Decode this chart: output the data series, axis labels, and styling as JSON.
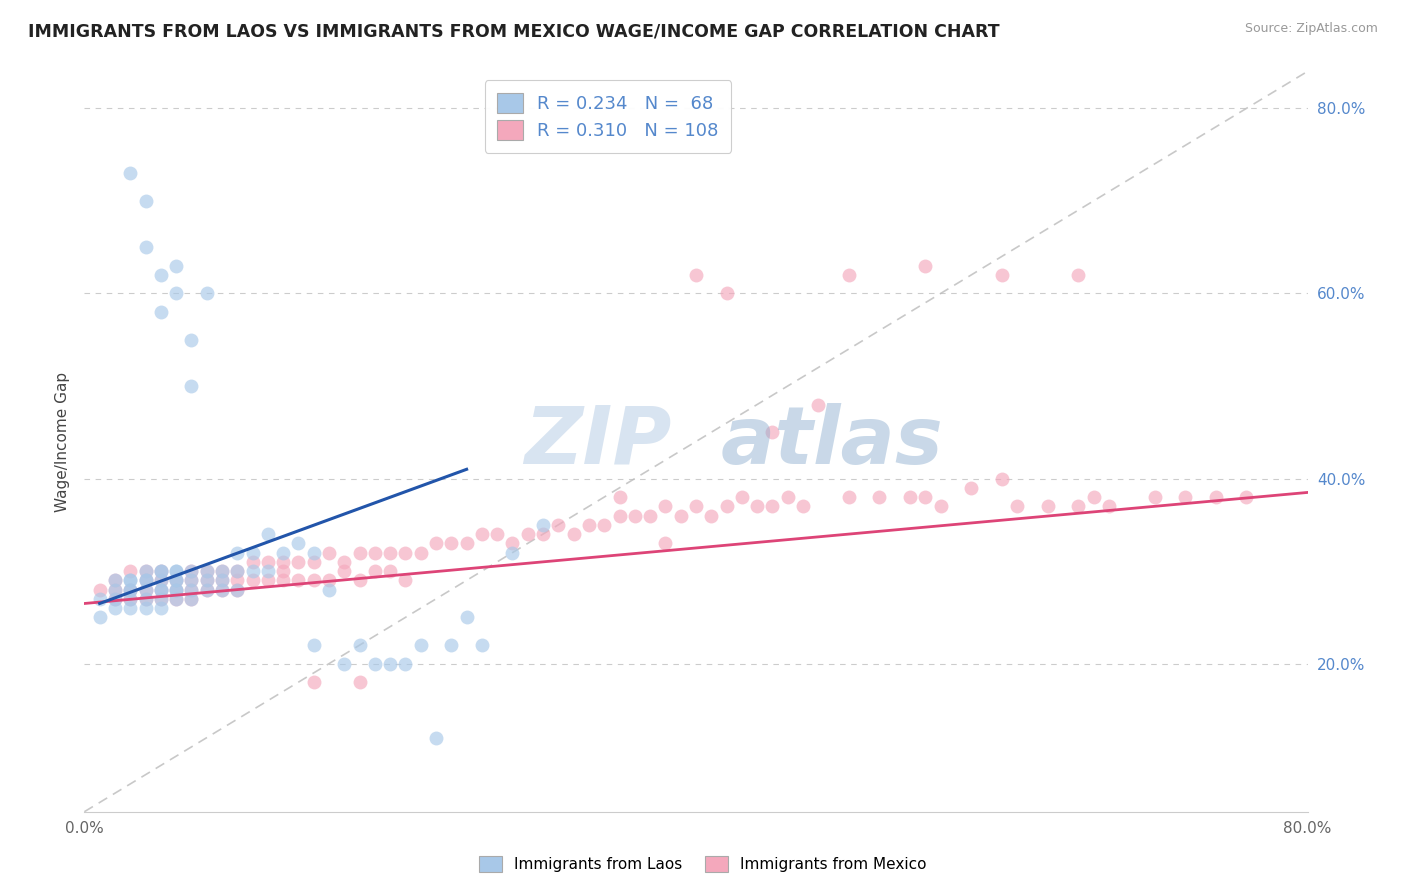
{
  "title": "IMMIGRANTS FROM LAOS VS IMMIGRANTS FROM MEXICO WAGE/INCOME GAP CORRELATION CHART",
  "source": "Source: ZipAtlas.com",
  "ylabel": "Wage/Income Gap",
  "legend_label1": "Immigrants from Laos",
  "legend_label2": "Immigrants from Mexico",
  "r1": 0.234,
  "n1": 68,
  "r2": 0.31,
  "n2": 108,
  "color1": "#a8c8e8",
  "color2": "#f4a8bc",
  "line_color1": "#2255aa",
  "line_color2": "#dd4477",
  "ref_line_color": "#bbbbbb",
  "xlim": [
    0.0,
    0.8
  ],
  "ylim": [
    0.04,
    0.84
  ],
  "xtick_positions": [
    0.0,
    0.8
  ],
  "xtick_labels": [
    "0.0%",
    "80.0%"
  ],
  "yticks_right": [
    0.2,
    0.4,
    0.6,
    0.8
  ],
  "watermark": "ZIPatlas",
  "background_color": "#ffffff",
  "laos_x": [
    0.01,
    0.01,
    0.02,
    0.02,
    0.02,
    0.02,
    0.03,
    0.03,
    0.03,
    0.03,
    0.03,
    0.03,
    0.04,
    0.04,
    0.04,
    0.04,
    0.04,
    0.04,
    0.05,
    0.05,
    0.05,
    0.05,
    0.05,
    0.05,
    0.05,
    0.06,
    0.06,
    0.06,
    0.06,
    0.06,
    0.06,
    0.06,
    0.07,
    0.07,
    0.07,
    0.07,
    0.07,
    0.08,
    0.08,
    0.08,
    0.08,
    0.09,
    0.09,
    0.09,
    0.1,
    0.1,
    0.1,
    0.11,
    0.11,
    0.12,
    0.12,
    0.13,
    0.14,
    0.15,
    0.15,
    0.16,
    0.17,
    0.18,
    0.19,
    0.2,
    0.21,
    0.22,
    0.23,
    0.24,
    0.25,
    0.26,
    0.28,
    0.3
  ],
  "laos_y": [
    0.27,
    0.25,
    0.29,
    0.28,
    0.27,
    0.26,
    0.29,
    0.28,
    0.29,
    0.27,
    0.26,
    0.28,
    0.3,
    0.29,
    0.28,
    0.27,
    0.29,
    0.26,
    0.3,
    0.28,
    0.27,
    0.29,
    0.26,
    0.3,
    0.28,
    0.29,
    0.28,
    0.3,
    0.27,
    0.28,
    0.29,
    0.3,
    0.29,
    0.3,
    0.28,
    0.27,
    0.55,
    0.3,
    0.29,
    0.28,
    0.6,
    0.3,
    0.28,
    0.29,
    0.32,
    0.3,
    0.28,
    0.32,
    0.3,
    0.34,
    0.3,
    0.32,
    0.33,
    0.32,
    0.22,
    0.28,
    0.2,
    0.22,
    0.2,
    0.2,
    0.2,
    0.22,
    0.12,
    0.22,
    0.25,
    0.22,
    0.32,
    0.35
  ],
  "laos_y_outliers_x": [
    0.03,
    0.04,
    0.04,
    0.05,
    0.05,
    0.06,
    0.06,
    0.07
  ],
  "laos_y_outliers_y": [
    0.73,
    0.7,
    0.65,
    0.62,
    0.58,
    0.63,
    0.6,
    0.5
  ],
  "mexico_x": [
    0.01,
    0.02,
    0.02,
    0.02,
    0.03,
    0.03,
    0.03,
    0.04,
    0.04,
    0.04,
    0.04,
    0.05,
    0.05,
    0.05,
    0.05,
    0.06,
    0.06,
    0.06,
    0.07,
    0.07,
    0.07,
    0.07,
    0.08,
    0.08,
    0.08,
    0.09,
    0.09,
    0.09,
    0.1,
    0.1,
    0.1,
    0.11,
    0.11,
    0.12,
    0.12,
    0.13,
    0.13,
    0.13,
    0.14,
    0.14,
    0.15,
    0.15,
    0.16,
    0.16,
    0.17,
    0.17,
    0.18,
    0.18,
    0.19,
    0.19,
    0.2,
    0.2,
    0.21,
    0.21,
    0.22,
    0.23,
    0.24,
    0.25,
    0.26,
    0.27,
    0.28,
    0.29,
    0.3,
    0.31,
    0.32,
    0.33,
    0.34,
    0.35,
    0.36,
    0.37,
    0.38,
    0.39,
    0.4,
    0.41,
    0.42,
    0.43,
    0.44,
    0.45,
    0.46,
    0.47,
    0.5,
    0.52,
    0.54,
    0.55,
    0.56,
    0.58,
    0.6,
    0.61,
    0.63,
    0.65,
    0.66,
    0.67,
    0.7,
    0.72,
    0.74,
    0.76,
    0.4,
    0.42,
    0.45,
    0.48,
    0.35,
    0.38,
    0.5,
    0.55,
    0.6,
    0.65,
    0.15,
    0.18
  ],
  "mexico_y": [
    0.28,
    0.29,
    0.28,
    0.27,
    0.3,
    0.28,
    0.27,
    0.3,
    0.29,
    0.28,
    0.27,
    0.29,
    0.28,
    0.27,
    0.3,
    0.29,
    0.28,
    0.27,
    0.3,
    0.29,
    0.28,
    0.27,
    0.3,
    0.28,
    0.29,
    0.3,
    0.29,
    0.28,
    0.3,
    0.29,
    0.28,
    0.31,
    0.29,
    0.31,
    0.29,
    0.31,
    0.3,
    0.29,
    0.31,
    0.29,
    0.31,
    0.29,
    0.32,
    0.29,
    0.31,
    0.3,
    0.32,
    0.29,
    0.32,
    0.3,
    0.32,
    0.3,
    0.32,
    0.29,
    0.32,
    0.33,
    0.33,
    0.33,
    0.34,
    0.34,
    0.33,
    0.34,
    0.34,
    0.35,
    0.34,
    0.35,
    0.35,
    0.36,
    0.36,
    0.36,
    0.37,
    0.36,
    0.37,
    0.36,
    0.37,
    0.38,
    0.37,
    0.37,
    0.38,
    0.37,
    0.38,
    0.38,
    0.38,
    0.38,
    0.37,
    0.39,
    0.4,
    0.37,
    0.37,
    0.37,
    0.38,
    0.37,
    0.38,
    0.38,
    0.38,
    0.38,
    0.62,
    0.6,
    0.45,
    0.48,
    0.38,
    0.33,
    0.62,
    0.63,
    0.62,
    0.62,
    0.18,
    0.18
  ],
  "trend1_x": [
    0.01,
    0.25
  ],
  "trend1_y": [
    0.265,
    0.41
  ],
  "trend2_x": [
    0.0,
    0.8
  ],
  "trend2_y": [
    0.265,
    0.385
  ]
}
